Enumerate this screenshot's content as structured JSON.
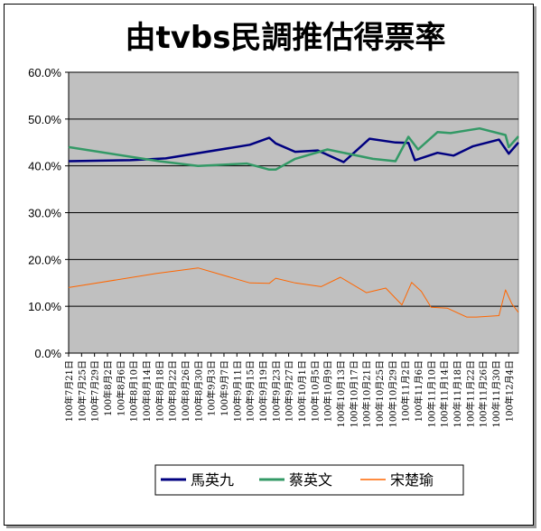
{
  "chart_data": {
    "type": "line",
    "title": "由tvbs民調推估得票率",
    "xlabel": "",
    "ylabel": "",
    "ylim": [
      0,
      60
    ],
    "ytick_labels": [
      "0.0%",
      "10.0%",
      "20.0%",
      "30.0%",
      "40.0%",
      "50.0%",
      "60.0%"
    ],
    "x_dates": [
      "100年7月21日",
      "100年7月25日",
      "100年7月29日",
      "100年8月2日",
      "100年8月6日",
      "100年8月10日",
      "100年8月14日",
      "100年8月18日",
      "100年8月22日",
      "100年8月26日",
      "100年8月30日",
      "100年9月3日",
      "100年9月7日",
      "100年9月11日",
      "100年9月15日",
      "100年9月19日",
      "100年9月23日",
      "100年9月27日",
      "100年10月1日",
      "100年10月5日",
      "100年10月9日",
      "100年10月13日",
      "100年10月17日",
      "100年10月21日",
      "100年10月25日",
      "100年10月29日",
      "100年11月2日",
      "100年11月6日",
      "100年11月10日",
      "100年11月14日",
      "100年11月18日",
      "100年11月22日",
      "100年11月26日",
      "100年11月30日",
      "100年12月4日"
    ],
    "grid": true,
    "background": "#c0c0c0",
    "legend_position": "bottom",
    "series": [
      {
        "name": "馬英九",
        "color": "#000080",
        "points": [
          [
            "2011-07-21",
            41.0
          ],
          [
            "2011-08-09",
            41.2
          ],
          [
            "2011-08-20",
            41.6
          ],
          [
            "2011-09-15",
            44.5
          ],
          [
            "2011-09-21",
            46.0
          ],
          [
            "2011-09-23",
            44.8
          ],
          [
            "2011-09-29",
            43.0
          ],
          [
            "2011-10-06",
            43.3
          ],
          [
            "2011-10-14",
            40.8
          ],
          [
            "2011-10-22",
            45.8
          ],
          [
            "2011-10-30",
            45.0
          ],
          [
            "2011-11-03",
            44.9
          ],
          [
            "2011-11-05",
            41.2
          ],
          [
            "2011-11-12",
            42.8
          ],
          [
            "2011-11-17",
            42.2
          ],
          [
            "2011-11-23",
            44.2
          ],
          [
            "2011-12-01",
            45.6
          ],
          [
            "2011-12-04",
            42.6
          ],
          [
            "2011-12-07",
            45.0
          ]
        ]
      },
      {
        "name": "蔡英文",
        "color": "#339966",
        "points": [
          [
            "2011-07-21",
            44.0
          ],
          [
            "2011-08-18",
            41.0
          ],
          [
            "2011-08-30",
            40.0
          ],
          [
            "2011-09-14",
            40.5
          ],
          [
            "2011-09-21",
            39.2
          ],
          [
            "2011-09-23",
            39.2
          ],
          [
            "2011-09-29",
            41.5
          ],
          [
            "2011-10-09",
            43.5
          ],
          [
            "2011-10-23",
            41.5
          ],
          [
            "2011-10-30",
            41.0
          ],
          [
            "2011-11-03",
            46.2
          ],
          [
            "2011-11-06",
            43.5
          ],
          [
            "2011-11-12",
            47.2
          ],
          [
            "2011-11-16",
            47.0
          ],
          [
            "2011-11-25",
            48.0
          ],
          [
            "2011-12-03",
            46.6
          ],
          [
            "2011-12-04",
            44.0
          ],
          [
            "2011-12-07",
            46.3
          ]
        ]
      },
      {
        "name": "宋楚瑜",
        "color": "#ff6600",
        "points": [
          [
            "2011-07-21",
            14.0
          ],
          [
            "2011-08-17",
            17.0
          ],
          [
            "2011-08-30",
            18.2
          ],
          [
            "2011-09-15",
            15.0
          ],
          [
            "2011-09-21",
            14.9
          ],
          [
            "2011-09-23",
            16.0
          ],
          [
            "2011-09-29",
            15.0
          ],
          [
            "2011-10-07",
            14.2
          ],
          [
            "2011-10-13",
            16.2
          ],
          [
            "2011-10-21",
            12.9
          ],
          [
            "2011-10-27",
            13.9
          ],
          [
            "2011-11-01",
            10.3
          ],
          [
            "2011-11-04",
            15.1
          ],
          [
            "2011-11-07",
            13.2
          ],
          [
            "2011-11-10",
            9.8
          ],
          [
            "2011-11-15",
            9.6
          ],
          [
            "2011-11-21",
            7.7
          ],
          [
            "2011-11-24",
            7.7
          ],
          [
            "2011-12-01",
            8.0
          ],
          [
            "2011-12-03",
            13.5
          ],
          [
            "2011-12-05",
            10.5
          ],
          [
            "2011-12-07",
            8.7
          ]
        ]
      }
    ]
  }
}
